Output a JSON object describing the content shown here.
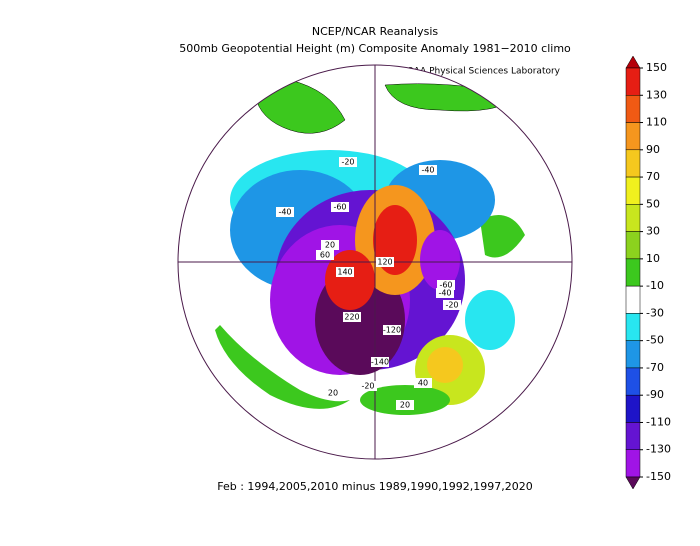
{
  "header": {
    "title": "NCEP/NCAR Reanalysis",
    "subtitle": "500mb Geopotential Height (m) Composite Anomaly 1981−2010 climo",
    "credit": "NOAA Physical Sciences Laboratory"
  },
  "footer": "Feb : 1994,2005,2010 minus 1989,1990,1992,1997,2020",
  "colorbar": {
    "levels": [
      150,
      130,
      110,
      90,
      70,
      50,
      30,
      10,
      -10,
      -30,
      -50,
      -70,
      -90,
      -110,
      -130,
      -150
    ],
    "colors": [
      "#b4000a",
      "#e61e14",
      "#f05a14",
      "#f5961e",
      "#f5c81e",
      "#f0f01e",
      "#c8e61e",
      "#8cd21e",
      "#3cc81e",
      "#ffffff",
      "#28e6f0",
      "#1e96e6",
      "#1e50e6",
      "#1e14c8",
      "#6414d2",
      "#a014e6",
      "#b40ab4",
      "#5a0a5a"
    ]
  },
  "contour_labels": [
    "-20",
    "-40",
    "-40",
    "-60",
    "120",
    "140",
    "-60",
    "-40",
    "-20",
    "20",
    "60",
    "220",
    "-120",
    "-140",
    "-20",
    "20",
    "40",
    "20"
  ]
}
